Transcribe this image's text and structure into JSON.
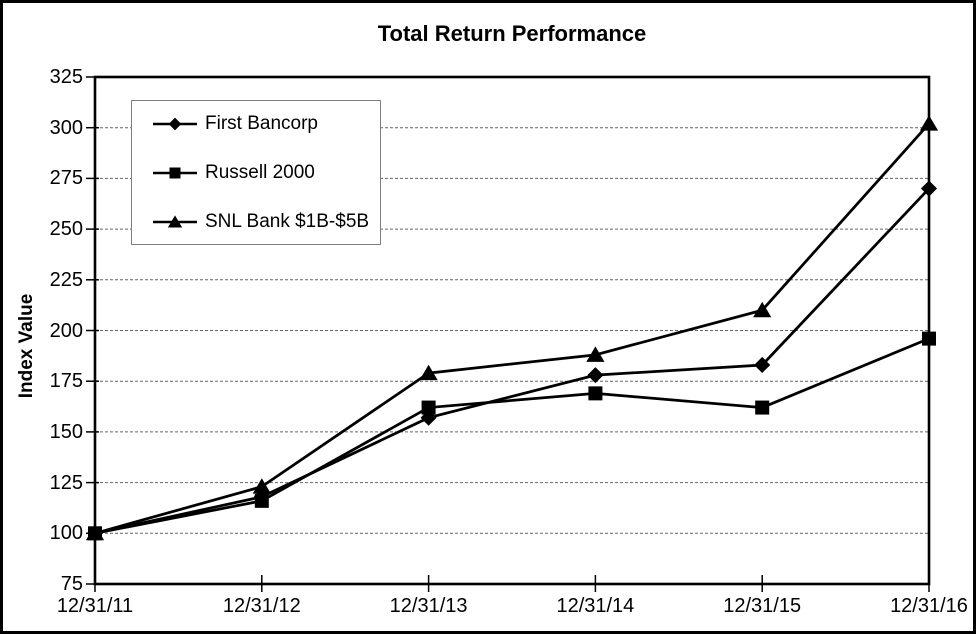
{
  "title": "Total Return Performance",
  "chart_data": {
    "type": "line",
    "title": "Total Return Performance",
    "xlabel": "",
    "ylabel": "Index Value",
    "x_categories": [
      "12/31/11",
      "12/31/12",
      "12/31/13",
      "12/31/14",
      "12/31/15",
      "12/31/16"
    ],
    "ylim": [
      75,
      325
    ],
    "y_ticks": [
      75,
      100,
      125,
      150,
      175,
      200,
      225,
      250,
      275,
      300,
      325
    ],
    "grid": "horizontal dashed",
    "legend_position": "upper-left inside plot",
    "series": [
      {
        "name": "First Bancorp",
        "marker": "diamond",
        "color": "#000000",
        "values": [
          100,
          118,
          157,
          178,
          183,
          270
        ]
      },
      {
        "name": "Russell 2000",
        "marker": "square",
        "color": "#000000",
        "values": [
          100,
          116,
          162,
          169,
          162,
          196
        ]
      },
      {
        "name": "SNL Bank $1B-$5B",
        "marker": "triangle",
        "color": "#000000",
        "values": [
          100,
          123,
          179,
          188,
          210,
          302
        ]
      }
    ]
  },
  "colors": {
    "series": "#000000",
    "grid": "#666666",
    "frame": "#000000",
    "background": "#ffffff",
    "legend_border": "#808080"
  }
}
